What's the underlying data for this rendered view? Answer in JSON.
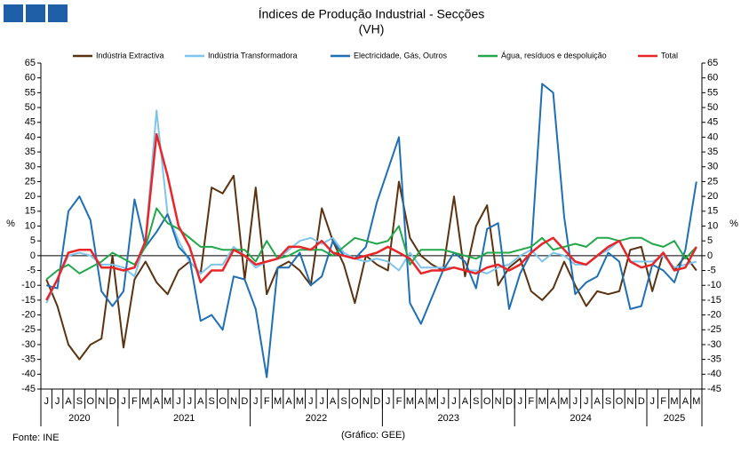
{
  "chart_data": {
    "type": "line",
    "title": "Índices de Produção Industrial - Secções",
    "subtitle": "(VH)",
    "y_label": "%",
    "y2_label": "%",
    "source": "Fonte: INE",
    "credit": "(Gráfico: GEE)",
    "categories": [
      "J",
      "J",
      "A",
      "S",
      "O",
      "N",
      "D",
      "J",
      "F",
      "M",
      "A",
      "M",
      "J",
      "J",
      "A",
      "S",
      "O",
      "N",
      "D",
      "J",
      "F",
      "M",
      "A",
      "M",
      "J",
      "J",
      "A",
      "S",
      "O",
      "N",
      "D",
      "J",
      "F",
      "M",
      "A",
      "M",
      "J",
      "J",
      "A",
      "S",
      "O",
      "N",
      "D",
      "J",
      "F",
      "M",
      "A",
      "M",
      "J",
      "J",
      "A",
      "S",
      "O",
      "N",
      "D",
      "J",
      "F",
      "M",
      "A",
      "M"
    ],
    "x_groups": [
      {
        "label": "2020",
        "span": 7
      },
      {
        "label": "2021",
        "span": 12
      },
      {
        "label": "2022",
        "span": 12
      },
      {
        "label": "2023",
        "span": 12
      },
      {
        "label": "2024",
        "span": 12
      },
      {
        "label": "2025",
        "span": 5
      }
    ],
    "ylim": [
      -45,
      65
    ],
    "yticks": [
      -45,
      -40,
      -35,
      -30,
      -25,
      -20,
      -15,
      -10,
      -5,
      0,
      5,
      10,
      15,
      20,
      25,
      30,
      35,
      40,
      45,
      50,
      55,
      60,
      65
    ],
    "y2lim": [
      -45,
      65
    ],
    "y2ticks": [
      -45,
      -40,
      -35,
      -30,
      -25,
      -20,
      -15,
      -10,
      -5,
      0,
      5,
      10,
      15,
      20,
      25,
      30,
      35,
      40,
      45,
      50,
      55,
      60,
      65
    ],
    "grid": false,
    "legend": "top",
    "series": [
      {
        "name": "Indústria Extractiva",
        "color": "#5c3310",
        "values": [
          -8,
          -17,
          -30,
          -35,
          -30,
          -28,
          0,
          -31,
          -8,
          -2,
          -9,
          -13,
          -5,
          -2,
          -6,
          23,
          21,
          27,
          -8,
          23,
          -13,
          -4,
          -2,
          -5,
          -10,
          16,
          5,
          -3,
          -16,
          0,
          -3,
          -5,
          25,
          6,
          0,
          -3,
          -5,
          20,
          -7,
          10,
          17,
          -10,
          -4,
          -1,
          -12,
          -15,
          -11,
          -2,
          -10,
          -17,
          -12,
          -13,
          -12,
          2,
          3,
          -12,
          1,
          -5,
          0,
          -5
        ]
      },
      {
        "name": "Indústria Transformadora",
        "color": "#7fc4ec",
        "values": [
          -16,
          -8,
          0,
          1,
          0,
          -3,
          -3,
          -4,
          -7,
          5,
          49,
          14,
          5,
          -2,
          -6,
          -3,
          -3,
          3,
          0,
          -4,
          -2,
          -1,
          2,
          5,
          6,
          4,
          6,
          1,
          -1,
          -2,
          -1,
          -2,
          -5,
          1,
          -4,
          -4,
          -4,
          -4,
          -5,
          -5,
          -6,
          -4,
          -3,
          0,
          2,
          -2,
          1,
          0,
          -3,
          -3,
          0,
          2,
          5,
          -2,
          -2,
          -2,
          0,
          -4,
          -3,
          -2
        ]
      },
      {
        "name": "Electricidade, Gás, Outros",
        "color": "#1f6fb4",
        "values": [
          -10,
          -11,
          15,
          20,
          12,
          -12,
          -17,
          -12,
          19,
          3,
          8,
          14,
          3,
          -1,
          -22,
          -20,
          -25,
          -7,
          -8,
          -18,
          -41,
          -4,
          -4,
          1,
          -10,
          -7,
          5,
          0,
          -1,
          3,
          18,
          29,
          40,
          -16,
          -23,
          -14,
          -5,
          1,
          -2,
          -11,
          9,
          11,
          -18,
          -6,
          1,
          58,
          55,
          13,
          -13,
          -9,
          -7,
          1,
          -2,
          -18,
          -17,
          -3,
          -5,
          -9,
          2,
          25
        ]
      },
      {
        "name": "Água, resíduos e despoluição",
        "color": "#22a84a",
        "values": [
          -8,
          -5,
          -3,
          -6,
          -4,
          -2,
          1,
          -1,
          -3,
          3,
          16,
          11,
          9,
          6,
          3,
          3,
          2,
          2,
          2,
          -2,
          5,
          -1,
          0,
          2,
          2,
          2,
          0,
          3,
          6,
          5,
          4,
          5,
          10,
          -3,
          2,
          2,
          2,
          1,
          0,
          -1,
          1,
          1,
          1,
          2,
          3,
          6,
          2,
          3,
          4,
          3,
          6,
          6,
          5,
          6,
          6,
          4,
          3,
          5,
          -1,
          3
        ]
      },
      {
        "name": "Total",
        "color": "#e8262a",
        "values": [
          -15,
          -8,
          1,
          2,
          2,
          -4,
          -4,
          -5,
          -4,
          5,
          41,
          27,
          10,
          3,
          -9,
          -5,
          -5,
          2,
          0,
          -3,
          -2,
          -1,
          3,
          3,
          2,
          5,
          1,
          0,
          -1,
          0,
          1,
          3,
          1,
          -1,
          -6,
          -5,
          -5,
          -4,
          -5,
          -6,
          -4,
          -3,
          -5,
          -3,
          1,
          4,
          6,
          2,
          -2,
          -3,
          0,
          3,
          5,
          -2,
          -4,
          -3,
          1,
          -5,
          -4,
          3
        ]
      }
    ]
  }
}
